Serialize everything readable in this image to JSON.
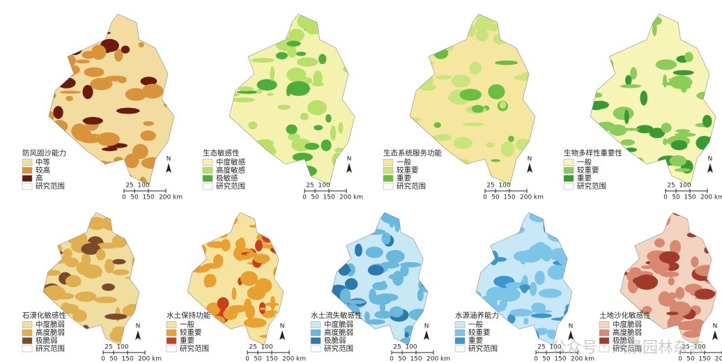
{
  "panels": [
    {
      "title": "防风固沙能力",
      "legend": [
        {
          "label": "中等",
          "color": "#f2dca0"
        },
        {
          "label": "较高",
          "color": "#d9933a"
        },
        {
          "label": "高",
          "color": "#6b1a0e"
        },
        {
          "label": "研究范围",
          "color": "#ffffff"
        }
      ]
    },
    {
      "title": "生态敏感性",
      "legend": [
        {
          "label": "中度敏感",
          "color": "#f5f2b0"
        },
        {
          "label": "高度敏感",
          "color": "#b8e06a"
        },
        {
          "label": "极敏感",
          "color": "#4fae3a"
        },
        {
          "label": "研究范围",
          "color": "#ffffff"
        }
      ]
    },
    {
      "title": "生态系统服务功能",
      "legend": [
        {
          "label": "一般",
          "color": "#f5e6a0"
        },
        {
          "label": "较重要",
          "color": "#c8e47a"
        },
        {
          "label": "重要",
          "color": "#6cbf3e"
        },
        {
          "label": "研究范围",
          "color": "#ffffff"
        }
      ]
    },
    {
      "title": "生物多样性重要性",
      "legend": [
        {
          "label": "一般",
          "color": "#f7f4b8"
        },
        {
          "label": "较重要",
          "color": "#8ccc5a"
        },
        {
          "label": "重要",
          "color": "#3a9a32"
        },
        {
          "label": "研究范围",
          "color": "#ffffff"
        }
      ]
    },
    {
      "title": "石漠化敏感性",
      "legend": [
        {
          "label": "中度脆弱",
          "color": "#f0dda0"
        },
        {
          "label": "高度脆弱",
          "color": "#e0b050"
        },
        {
          "label": "极脆弱",
          "color": "#7a4a2a"
        },
        {
          "label": "研究范围",
          "color": "#ffffff"
        }
      ]
    },
    {
      "title": "水土保持功能",
      "legend": [
        {
          "label": "一般",
          "color": "#f5e3a0"
        },
        {
          "label": "较重要",
          "color": "#e8a030"
        },
        {
          "label": "重要",
          "color": "#c8401e"
        },
        {
          "label": "研究范围",
          "color": "#ffffff"
        }
      ]
    },
    {
      "title": "水土流失敏感性",
      "legend": [
        {
          "label": "中度脆弱",
          "color": "#c8e8f5"
        },
        {
          "label": "高度脆弱",
          "color": "#6ab8dc"
        },
        {
          "label": "极脆弱",
          "color": "#2a7ab0"
        },
        {
          "label": "研究范围",
          "color": "#ffffff"
        }
      ]
    },
    {
      "title": "水源涵养能力",
      "legend": [
        {
          "label": "一般",
          "color": "#c8e8f8"
        },
        {
          "label": "较重要",
          "color": "#7cc4e8"
        },
        {
          "label": "重要",
          "color": "#3a96cc"
        },
        {
          "label": "研究范围",
          "color": "#ffffff"
        }
      ]
    },
    {
      "title": "土地沙化敏感性",
      "legend": [
        {
          "label": "中度脆弱",
          "color": "#f2d4c0"
        },
        {
          "label": "高度脆弱",
          "color": "#d88870"
        },
        {
          "label": "极脆弱",
          "color": "#a03a2a"
        },
        {
          "label": "研究范围",
          "color": "#ffffff"
        }
      ]
    }
  ],
  "scale": {
    "top": [
      "25",
      "100"
    ],
    "bottom": [
      "0",
      "50",
      "150",
      "200 km"
    ]
  },
  "north": "N",
  "watermark": "公众号 · 风景园林杂志"
}
